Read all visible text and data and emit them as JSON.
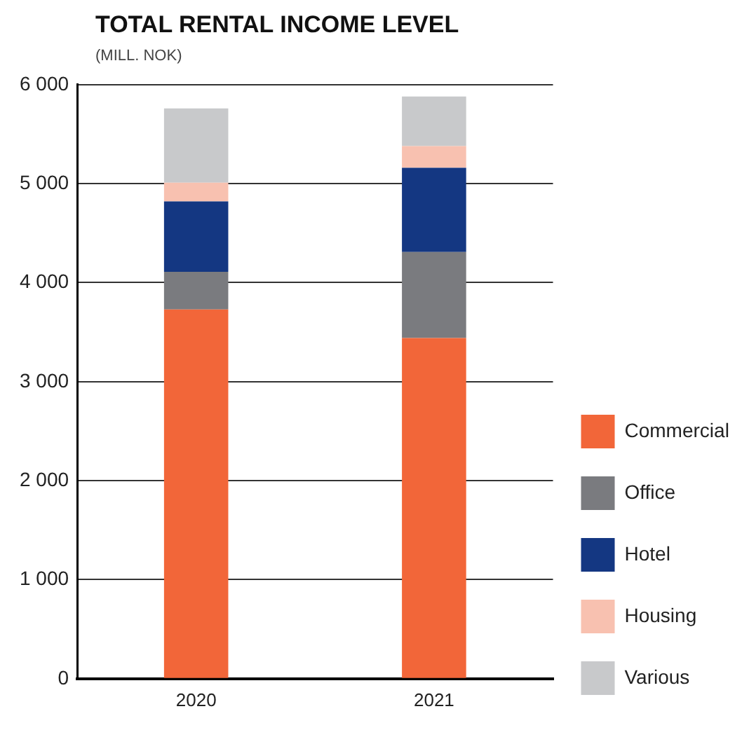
{
  "chart_data": {
    "type": "bar",
    "title": "TOTAL RENTAL INCOME LEVEL",
    "subtitle": "(MILL. NOK)",
    "categories": [
      "2020",
      "2021"
    ],
    "stacked": true,
    "series": [
      {
        "name": "Commercial",
        "color": "#f26639",
        "values": [
          3730,
          3440
        ]
      },
      {
        "name": "Office",
        "color": "#7a7b7f",
        "values": [
          380,
          870
        ]
      },
      {
        "name": "Hotel",
        "color": "#143782",
        "values": [
          710,
          850
        ]
      },
      {
        "name": "Housing",
        "color": "#f8c1b0",
        "values": [
          190,
          220
        ]
      },
      {
        "name": "Various",
        "color": "#c8c9cb",
        "values": [
          750,
          500
        ]
      }
    ],
    "ylim": [
      0,
      6000
    ],
    "yticks": [
      0,
      {
        "value": 1000,
        "label": "1 000"
      },
      {
        "value": 2000,
        "label": "2 000"
      },
      {
        "value": 3000,
        "label": "3 000"
      },
      {
        "value": 4000,
        "label": "4 000"
      },
      {
        "value": 5000,
        "label": "5 000"
      },
      {
        "value": 6000,
        "label": "6 000"
      }
    ],
    "grid": "y",
    "legend": "bottom right"
  }
}
